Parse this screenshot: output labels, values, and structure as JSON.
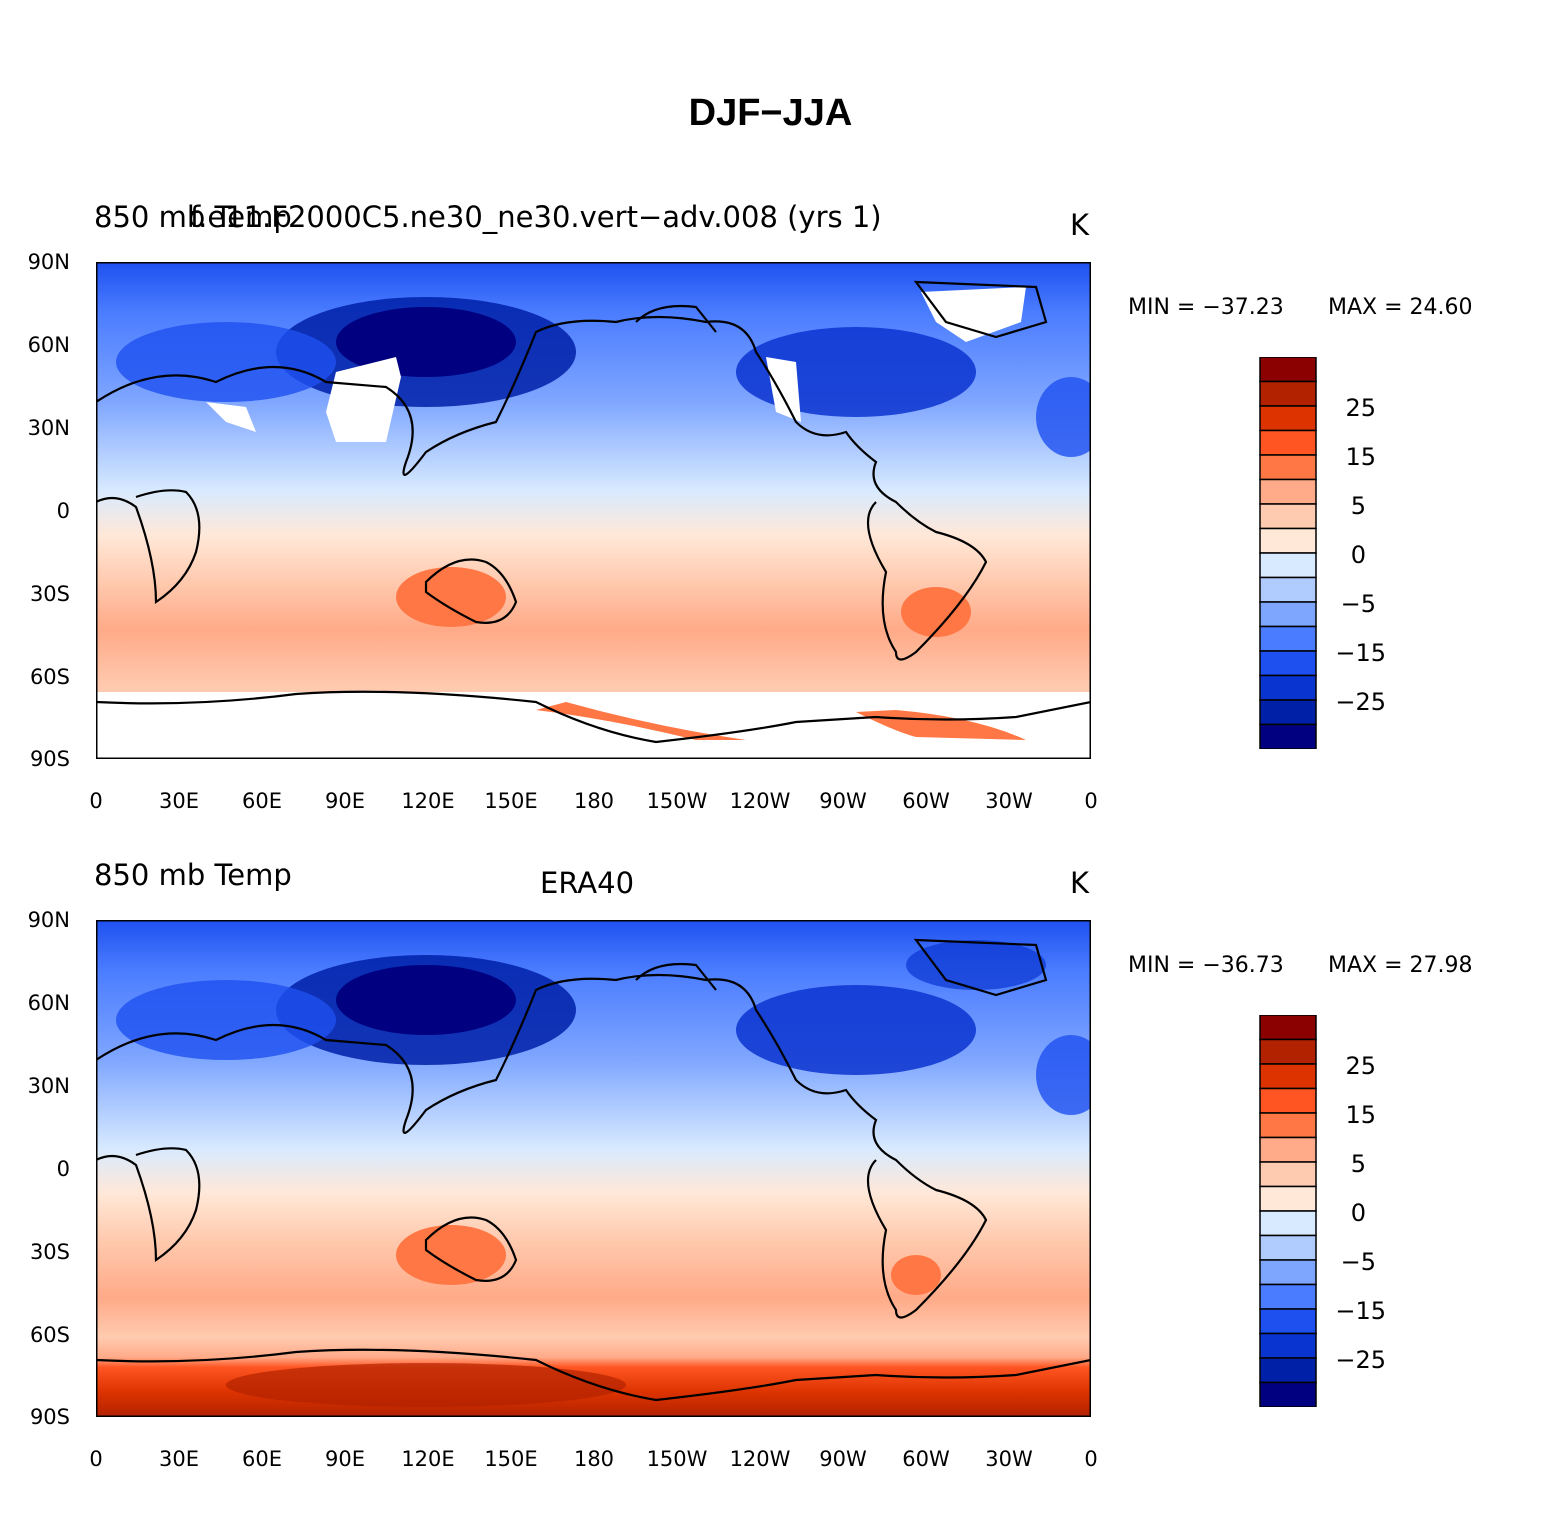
{
  "title": "DJF-JJA",
  "panels": [
    {
      "left_label": "850 mb Temp",
      "center_label": "f.e11.F2000C5.ne30_ne30.vert-adv.008 (yrs 1)",
      "units": "K",
      "min_label": "MIN = -37.23",
      "max_label": "MAX =   24.60",
      "min": -37.23,
      "max": 24.6
    },
    {
      "left_label": "850 mb Temp",
      "center_label": "ERA40",
      "units": "K",
      "min_label": "MIN = -36.73",
      "max_label": "MAX =   27.98",
      "min": -36.73,
      "max": 27.98
    }
  ],
  "lat_ticks": [
    "90N",
    "60N",
    "30N",
    "0",
    "30S",
    "60S",
    "90S"
  ],
  "lon_ticks": [
    "0",
    "30E",
    "60E",
    "90E",
    "120E",
    "150E",
    "180",
    "150W",
    "120W",
    "90W",
    "60W",
    "30W",
    "0"
  ],
  "colorbar": {
    "labels": [
      "25",
      "15",
      "5",
      "0",
      "-5",
      "-15",
      "-25"
    ],
    "colors": [
      "#8b0000",
      "#b22200",
      "#dd3300",
      "#ff5522",
      "#ff7744",
      "#ffaa88",
      "#ffcbb0",
      "#ffe8d8",
      "#d8eaff",
      "#b0ccff",
      "#7fa6ff",
      "#4a7cff",
      "#1e50f0",
      "#0a34d0",
      "#0020a8",
      "#000080"
    ]
  }
}
